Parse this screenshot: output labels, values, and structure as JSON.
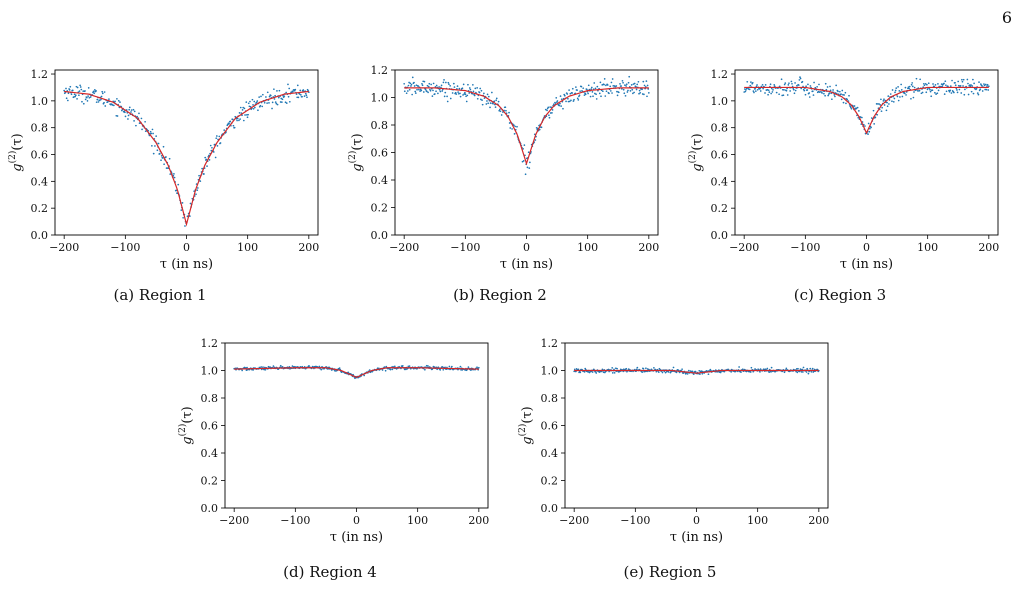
{
  "page_number": "6",
  "chart_data": [
    {
      "type": "scatter",
      "id": "region-1",
      "caption": "(a) Region 1",
      "xlabel": "τ (in ns)",
      "ylabel_base": "g",
      "ylabel_sup": "(2)",
      "ylabel_arg": "(τ)",
      "xlim": [
        -215,
        215
      ],
      "ylim": [
        0.0,
        1.23
      ],
      "xticks": [
        -200,
        -100,
        0,
        100,
        200
      ],
      "xtick_labels": [
        "−200",
        "−100",
        "0",
        "100",
        "200"
      ],
      "yticks": [
        0.0,
        0.2,
        0.4,
        0.6,
        0.8,
        1.0,
        1.2
      ],
      "ytick_labels": [
        "0.0",
        "0.2",
        "0.4",
        "0.6",
        "0.8",
        "1.0",
        "1.2"
      ],
      "grid": false,
      "fit_curve": {
        "type": "line",
        "color": "#d62728",
        "x": [
          -200,
          -160,
          -120,
          -80,
          -50,
          -30,
          -15,
          0,
          15,
          30,
          50,
          80,
          120,
          160,
          200
        ],
        "y": [
          1.07,
          1.05,
          0.99,
          0.87,
          0.69,
          0.52,
          0.34,
          0.08,
          0.34,
          0.52,
          0.69,
          0.87,
          0.99,
          1.05,
          1.07
        ]
      },
      "data_points": {
        "type": "scatter",
        "color": "#1f77b4",
        "noise": 0.03
      },
      "colors": {
        "fit": "#d62728",
        "data": "#1f77b4"
      }
    },
    {
      "type": "scatter",
      "id": "region-2",
      "caption": "(b) Region 2",
      "xlabel": "τ (in ns)",
      "ylabel_base": "g",
      "ylabel_sup": "(2)",
      "ylabel_arg": "(τ)",
      "xlim": [
        -215,
        215
      ],
      "ylim": [
        0.0,
        1.2
      ],
      "xticks": [
        -200,
        -100,
        0,
        100,
        200
      ],
      "xtick_labels": [
        "−200",
        "−100",
        "0",
        "100",
        "200"
      ],
      "yticks": [
        0.0,
        0.2,
        0.4,
        0.6,
        0.8,
        1.0,
        1.2
      ],
      "ytick_labels": [
        "0.0",
        "0.2",
        "0.4",
        "0.6",
        "0.8",
        "1.0",
        "1.2"
      ],
      "grid": false,
      "fit_curve": {
        "type": "line",
        "color": "#d62728",
        "x": [
          -200,
          -150,
          -100,
          -70,
          -45,
          -30,
          -15,
          0,
          15,
          30,
          45,
          70,
          100,
          150,
          200
        ],
        "y": [
          1.07,
          1.07,
          1.05,
          1.01,
          0.94,
          0.86,
          0.73,
          0.52,
          0.73,
          0.86,
          0.94,
          1.01,
          1.05,
          1.07,
          1.07
        ]
      },
      "data_points": {
        "type": "scatter",
        "color": "#1f77b4",
        "noise": 0.03
      },
      "colors": {
        "fit": "#d62728",
        "data": "#1f77b4"
      }
    },
    {
      "type": "scatter",
      "id": "region-3",
      "caption": "(c) Region 3",
      "xlabel": "τ (in ns)",
      "ylabel_base": "g",
      "ylabel_sup": "(2)",
      "ylabel_arg": "(τ)",
      "xlim": [
        -215,
        215
      ],
      "ylim": [
        0.0,
        1.23
      ],
      "xticks": [
        -200,
        -100,
        0,
        100,
        200
      ],
      "xtick_labels": [
        "−200",
        "−100",
        "0",
        "100",
        "200"
      ],
      "yticks": [
        0.0,
        0.2,
        0.4,
        0.6,
        0.8,
        1.0,
        1.2
      ],
      "ytick_labels": [
        "0.0",
        "0.2",
        "0.4",
        "0.6",
        "0.8",
        "1.0",
        "1.2"
      ],
      "grid": false,
      "fit_curve": {
        "type": "line",
        "color": "#d62728",
        "x": [
          -200,
          -150,
          -100,
          -60,
          -40,
          -25,
          -12,
          0,
          12,
          25,
          40,
          60,
          100,
          150,
          200
        ],
        "y": [
          1.1,
          1.1,
          1.1,
          1.07,
          1.03,
          0.97,
          0.88,
          0.76,
          0.88,
          0.97,
          1.03,
          1.07,
          1.1,
          1.1,
          1.1
        ]
      },
      "data_points": {
        "type": "scatter",
        "color": "#1f77b4",
        "noise": 0.03
      },
      "colors": {
        "fit": "#d62728",
        "data": "#1f77b4"
      }
    },
    {
      "type": "scatter",
      "id": "region-4",
      "caption": "(d) Region 4",
      "xlabel": "τ (in ns)",
      "ylabel_base": "g",
      "ylabel_sup": "(2)",
      "ylabel_arg": "(τ)",
      "xlim": [
        -215,
        215
      ],
      "ylim": [
        0.0,
        1.2
      ],
      "xticks": [
        -200,
        -100,
        0,
        100,
        200
      ],
      "xtick_labels": [
        "−200",
        "−100",
        "0",
        "100",
        "200"
      ],
      "yticks": [
        0.0,
        0.2,
        0.4,
        0.6,
        0.8,
        1.0,
        1.2
      ],
      "ytick_labels": [
        "0.0",
        "0.2",
        "0.4",
        "0.6",
        "0.8",
        "1.0",
        "1.2"
      ],
      "grid": false,
      "fit_curve": {
        "type": "line",
        "color": "#d62728",
        "x": [
          -200,
          -100,
          -50,
          -25,
          -10,
          0,
          10,
          25,
          50,
          100,
          200
        ],
        "y": [
          1.01,
          1.02,
          1.02,
          1.0,
          0.97,
          0.95,
          0.97,
          1.0,
          1.02,
          1.02,
          1.01
        ]
      },
      "data_points": {
        "type": "scatter",
        "color": "#1f77b4",
        "noise": 0.006
      },
      "colors": {
        "fit": "#d62728",
        "data": "#1f77b4"
      }
    },
    {
      "type": "scatter",
      "id": "region-5",
      "caption": "(e) Region 5",
      "xlabel": "τ (in ns)",
      "ylabel_base": "g",
      "ylabel_sup": "(2)",
      "ylabel_arg": "(τ)",
      "xlim": [
        -215,
        215
      ],
      "ylim": [
        0.0,
        1.2
      ],
      "xticks": [
        -200,
        -100,
        0,
        100,
        200
      ],
      "xtick_labels": [
        "−200",
        "−100",
        "0",
        "100",
        "200"
      ],
      "yticks": [
        0.0,
        0.2,
        0.4,
        0.6,
        0.8,
        1.0,
        1.2
      ],
      "ytick_labels": [
        "0.0",
        "0.2",
        "0.4",
        "0.6",
        "0.8",
        "1.0",
        "1.2"
      ],
      "grid": false,
      "fit_curve": {
        "type": "line",
        "color": "#d62728",
        "x": [
          -200,
          -100,
          -40,
          -20,
          -8,
          0,
          8,
          20,
          40,
          100,
          200
        ],
        "y": [
          1.0,
          1.0,
          1.0,
          0.99,
          0.985,
          0.98,
          0.985,
          0.99,
          1.0,
          1.0,
          1.0
        ]
      },
      "data_points": {
        "type": "scatter",
        "color": "#1f77b4",
        "noise": 0.008
      },
      "colors": {
        "fit": "#d62728",
        "data": "#1f77b4"
      }
    }
  ]
}
